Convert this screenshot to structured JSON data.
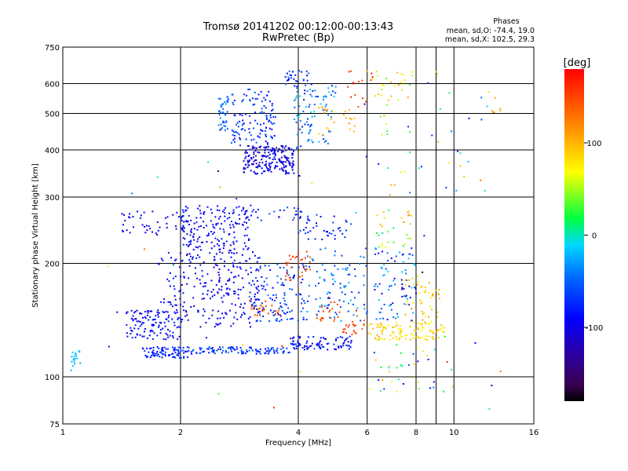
{
  "chart_data": {
    "type": "scatter",
    "title": "Tromsø 20141202 00:12:00-00:13:43",
    "subtitle": "RwPretec (Bp)",
    "xlabel": "Frequency [MHz]",
    "ylabel": "Stationary phase Virtual Height [km]",
    "x_scale": "log",
    "y_scale": "log",
    "xlim": [
      1,
      16
    ],
    "ylim": [
      75,
      750
    ],
    "x_ticks": [
      1,
      2,
      4,
      6,
      8,
      10,
      16
    ],
    "x_grid": [
      2,
      4,
      6,
      8,
      9,
      10
    ],
    "y_ticks": [
      75,
      100,
      200,
      300,
      400,
      500,
      600,
      750
    ],
    "grid": true,
    "stats": {
      "title": "Phases",
      "line1": "mean, sd,O: -74.4, 19.0",
      "line2": "mean, sd,X: 102.5, 29.3"
    },
    "colorbar": {
      "label": "[deg]",
      "range": [
        -180,
        180
      ],
      "ticks": [
        100,
        0,
        -100
      ],
      "tick_labels": [
        "100",
        "0",
        "-100"
      ]
    },
    "clusters": [
      {
        "x": [
          1.05,
          1.12
        ],
        "y": [
          102,
          118
        ],
        "phase": [
          -30,
          -10
        ],
        "n": 18
      },
      {
        "x": [
          1.6,
          2.1
        ],
        "y": [
          112,
          120
        ],
        "phase": [
          -95,
          -60
        ],
        "n": 90
      },
      {
        "x": [
          2.1,
          3.8
        ],
        "y": [
          115,
          120
        ],
        "phase": [
          -100,
          -40
        ],
        "n": 110
      },
      {
        "x": [
          3.8,
          5.5
        ],
        "y": [
          118,
          128
        ],
        "phase": [
          -110,
          -60
        ],
        "n": 90
      },
      {
        "x": [
          1.45,
          2.0
        ],
        "y": [
          125,
          150
        ],
        "phase": [
          -110,
          -70
        ],
        "n": 110
      },
      {
        "x": [
          1.75,
          3.2
        ],
        "y": [
          135,
          215
        ],
        "phase": [
          -115,
          -75
        ],
        "n": 260
      },
      {
        "x": [
          2.0,
          3.0
        ],
        "y": [
          215,
          285
        ],
        "phase": [
          -110,
          -75
        ],
        "n": 180
      },
      {
        "x": [
          1.4,
          2.0
        ],
        "y": [
          240,
          275
        ],
        "phase": [
          -110,
          -80
        ],
        "n": 40
      },
      {
        "x": [
          3.0,
          4.2
        ],
        "y": [
          140,
          200
        ],
        "phase": [
          -100,
          -40
        ],
        "n": 120
      },
      {
        "x": [
          3.0,
          3.6
        ],
        "y": [
          145,
          160
        ],
        "phase": [
          120,
          160
        ],
        "n": 25
      },
      {
        "x": [
          3.7,
          4.3
        ],
        "y": [
          180,
          215
        ],
        "phase": [
          130,
          165
        ],
        "n": 30
      },
      {
        "x": [
          4.4,
          5.1
        ],
        "y": [
          140,
          165
        ],
        "phase": [
          130,
          160
        ],
        "n": 25
      },
      {
        "x": [
          5.2,
          5.9
        ],
        "y": [
          128,
          145
        ],
        "phase": [
          135,
          165
        ],
        "n": 22
      },
      {
        "x": [
          4.2,
          6.0
        ],
        "y": [
          140,
          220
        ],
        "phase": [
          -80,
          -20
        ],
        "n": 90
      },
      {
        "x": [
          4.0,
          5.5
        ],
        "y": [
          230,
          270
        ],
        "phase": [
          -110,
          -60
        ],
        "n": 40
      },
      {
        "x": [
          3.0,
          4.5
        ],
        "y": [
          260,
          285
        ],
        "phase": [
          -100,
          -50
        ],
        "n": 30
      },
      {
        "x": [
          2.9,
          3.9
        ],
        "y": [
          345,
          410
        ],
        "phase": [
          -125,
          -80
        ],
        "n": 200
      },
      {
        "x": [
          2.7,
          3.5
        ],
        "y": [
          410,
          580
        ],
        "phase": [
          -90,
          -50
        ],
        "n": 120
      },
      {
        "x": [
          2.5,
          2.65
        ],
        "y": [
          450,
          560
        ],
        "phase": [
          -60,
          -30
        ],
        "n": 40
      },
      {
        "x": [
          3.9,
          5.0
        ],
        "y": [
          400,
          600
        ],
        "phase": [
          -80,
          -10
        ],
        "n": 90
      },
      {
        "x": [
          4.5,
          5.6
        ],
        "y": [
          430,
          520
        ],
        "phase": [
          90,
          120
        ],
        "n": 25
      },
      {
        "x": [
          3.7,
          4.3
        ],
        "y": [
          590,
          650
        ],
        "phase": [
          -100,
          -40
        ],
        "n": 25
      },
      {
        "x": [
          5.3,
          6.2
        ],
        "y": [
          520,
          650
        ],
        "phase": [
          140,
          170
        ],
        "n": 15
      },
      {
        "x": [
          6.2,
          8.0
        ],
        "y": [
          540,
          650
        ],
        "phase": [
          40,
          110
        ],
        "n": 25
      },
      {
        "x": [
          6.0,
          9.5
        ],
        "y": [
          125,
          140
        ],
        "phase": [
          60,
          110
        ],
        "n": 110
      },
      {
        "x": [
          7.5,
          9.2
        ],
        "y": [
          140,
          185
        ],
        "phase": [
          60,
          120
        ],
        "n": 45
      },
      {
        "x": [
          6.2,
          8.0
        ],
        "y": [
          140,
          220
        ],
        "phase": [
          -100,
          -10
        ],
        "n": 70
      },
      {
        "x": [
          6.3,
          7.8
        ],
        "y": [
          220,
          280
        ],
        "phase": [
          0,
          120
        ],
        "n": 30
      },
      {
        "x": [
          7.0,
          8.2
        ],
        "y": [
          160,
          185
        ],
        "phase": [
          -130,
          -110
        ],
        "n": 12
      },
      {
        "x": [
          6.0,
          10.0
        ],
        "y": [
          90,
          120
        ],
        "phase": [
          -100,
          120
        ],
        "n": 35
      },
      {
        "x": [
          5.8,
          12.5
        ],
        "y": [
          300,
          650
        ],
        "phase": [
          -120,
          120
        ],
        "n": 45
      },
      {
        "x": [
          12.5,
          13.2
        ],
        "y": [
          500,
          550
        ],
        "phase": [
          100,
          120
        ],
        "n": 6
      },
      {
        "x": [
          1.3,
          15.0
        ],
        "y": [
          80,
          700
        ],
        "phase": [
          -180,
          180
        ],
        "n": 40
      }
    ]
  }
}
